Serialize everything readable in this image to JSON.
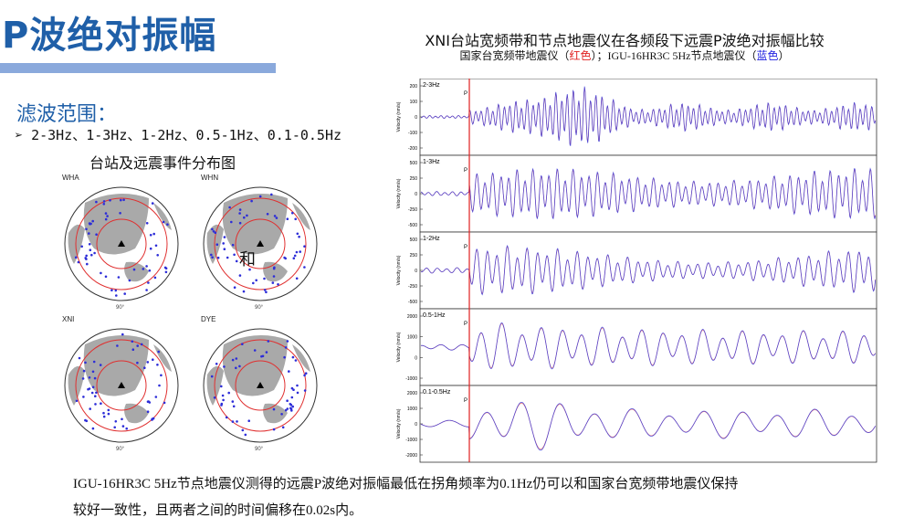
{
  "header": {
    "title": "P波绝对振幅"
  },
  "filter": {
    "title": "滤波范围：",
    "bullet": "➢",
    "bands": "2-3Hz、1-3Hz、1-2Hz、0.5-1Hz、0.1-0.5Hz"
  },
  "maps": {
    "title": "台站及远震事件分布图",
    "stations": [
      "WHA",
      "WHN",
      "XNI",
      "DYE"
    ],
    "overlay_char": "和",
    "lon_tick": "90°"
  },
  "comparison": {
    "title": "XNI台站宽频带和节点地震仪在各频段下远震P波绝对振幅比较",
    "subtitle_prefix": "国家台宽频带地震仪（",
    "red_word": "红色",
    "subtitle_mid": "）；IGU-16HR3C 5Hz节点地震仪（",
    "blue_word": "蓝色",
    "subtitle_suffix": "）",
    "colors": {
      "broadband": "#e02020",
      "node": "#3a3ad8",
      "p_marker": "#e02020"
    }
  },
  "chart_data": {
    "type": "line",
    "ylabel": "Velocity (nm/s)",
    "p_marker_label": "P",
    "panels": [
      {
        "band": "2-3Hz",
        "yticks": [
          "200",
          "100",
          "0",
          "-100",
          "-200"
        ],
        "ylim": [
          -250,
          250
        ]
      },
      {
        "band": "1-3Hz",
        "yticks": [
          "500",
          "250",
          "0",
          "-250",
          "-500"
        ],
        "ylim": [
          -550,
          550
        ]
      },
      {
        "band": "1-2Hz",
        "yticks": [
          "500",
          "250",
          "0",
          "-250",
          "-500"
        ],
        "ylim": [
          -550,
          550
        ]
      },
      {
        "band": "0.5-1Hz",
        "yticks": [
          "2000",
          "1000",
          "0",
          "-1000"
        ],
        "ylim": [
          -1500,
          2200
        ]
      },
      {
        "band": "0.1-0.5Hz",
        "yticks": [
          "2000",
          "1000",
          "0",
          "-1000",
          "-2000"
        ],
        "ylim": [
          -2200,
          2500
        ]
      }
    ]
  },
  "conclusion": {
    "line1": "IGU-16HR3C 5Hz节点地震仪测得的远震P波绝对振幅最低在拐角频率为0.1Hz仍可以和国家台宽频带地震仪保持",
    "line2": "较好一致性，且两者之间的时间偏移在0.02s内。"
  }
}
